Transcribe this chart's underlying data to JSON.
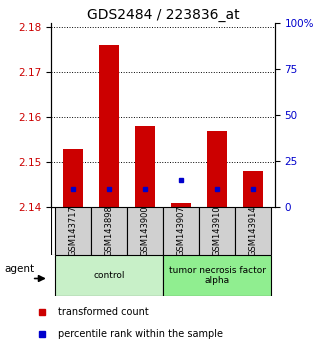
{
  "title": "GDS2484 / 223836_at",
  "samples": [
    "GSM143717",
    "GSM143898",
    "GSM143900",
    "GSM143907",
    "GSM143910",
    "GSM143914"
  ],
  "red_values": [
    2.153,
    2.176,
    2.158,
    2.141,
    2.157,
    2.148
  ],
  "blue_values": [
    2.144,
    2.144,
    2.144,
    2.146,
    2.144,
    2.144
  ],
  "ymin": 2.14,
  "ymax": 2.181,
  "y_ticks": [
    2.14,
    2.15,
    2.16,
    2.17,
    2.18
  ],
  "right_y_ticks": [
    0,
    25,
    50,
    75,
    100
  ],
  "right_y_labels": [
    "0",
    "25",
    "50",
    "75",
    "100%"
  ],
  "groups": [
    {
      "label": "control",
      "indices": [
        0,
        1,
        2
      ],
      "color": "#c8f0c8"
    },
    {
      "label": "tumor necrosis factor\nalpha",
      "indices": [
        3,
        4,
        5
      ],
      "color": "#90ee90"
    }
  ],
  "agent_label": "agent",
  "legend_red": "transformed count",
  "legend_blue": "percentile rank within the sample",
  "bar_width": 0.55,
  "bar_bottom": 2.14,
  "left_axis_color": "#cc0000",
  "right_axis_color": "#0000cc",
  "title_fontsize": 10,
  "tick_fontsize": 7.5,
  "sample_box_color": "#d0d0d0",
  "spine_color": "#000000"
}
